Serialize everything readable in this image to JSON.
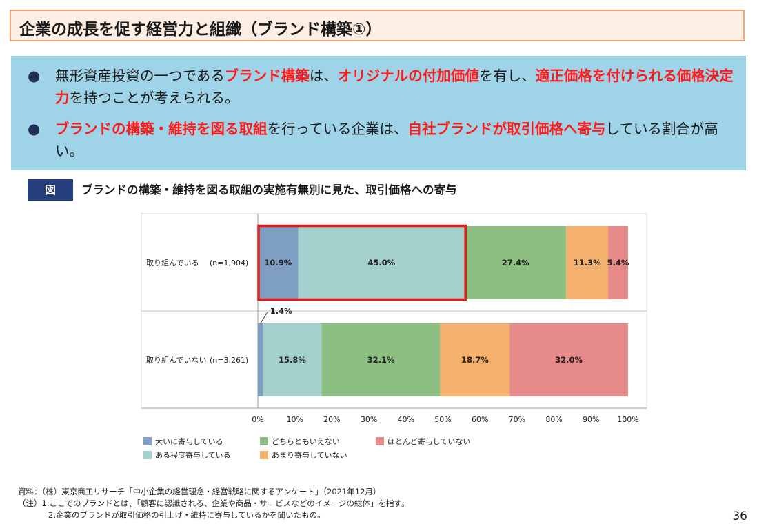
{
  "title": "企業の成長を促す経営力と組織（ブランド構築①）",
  "bullets": [
    {
      "segments": [
        {
          "text": "無形資産投資の一つである",
          "hl": false
        },
        {
          "text": "ブランド構築",
          "hl": true
        },
        {
          "text": "は、",
          "hl": false
        },
        {
          "text": "オリジナルの付加価値",
          "hl": true
        },
        {
          "text": "を有し、",
          "hl": false
        },
        {
          "text": "適正価格を付けられる価格決定力",
          "hl": true
        },
        {
          "text": "を持つことが考えられる。",
          "hl": false
        }
      ]
    },
    {
      "segments": [
        {
          "text": "ブランドの構築・維持を図る取組",
          "hl": true
        },
        {
          "text": "を行っている企業は、",
          "hl": false
        },
        {
          "text": "自社ブランドが取引価格へ寄与",
          "hl": true
        },
        {
          "text": "している割合が高い。",
          "hl": false
        }
      ]
    }
  ],
  "figure_label": "図",
  "figure_title": "ブランドの構築・維持を図る取組の実施有無別に見た、取引価格への寄与",
  "colors": {
    "highlight": "#ff1a1a",
    "title_bg": "#fdeee4",
    "title_border": "#f2a779",
    "info_bg": "#9ed3e8",
    "figure_label_bg": "#243f7c",
    "highlight_frame": "#e01b1b"
  },
  "chart_data": {
    "type": "bar",
    "orientation": "horizontal",
    "stacked": true,
    "categories": [
      "取り組んでいる",
      "取り組んでいない"
    ],
    "sample_sizes": [
      "(n=1,904)",
      "(n=3,261)"
    ],
    "series": [
      {
        "name": "大いに寄与している",
        "color": "#7f9fc3",
        "values": [
          10.9,
          1.4
        ],
        "labels": [
          "10.9%",
          "1.4%"
        ]
      },
      {
        "name": "ある程度寄与している",
        "color": "#a3cfcc",
        "values": [
          45.0,
          15.8
        ],
        "labels": [
          "45.0%",
          "15.8%"
        ]
      },
      {
        "name": "どちらともいえない",
        "color": "#8dbe82",
        "values": [
          27.4,
          32.1
        ],
        "labels": [
          "27.4%",
          "32.1%"
        ]
      },
      {
        "name": "あまり寄与していない",
        "color": "#f4b26e",
        "values": [
          11.3,
          18.7
        ],
        "labels": [
          "11.3%",
          "18.7%"
        ]
      },
      {
        "name": "ほとんど寄与していない",
        "color": "#e68a8a",
        "values": [
          5.4,
          32.0
        ],
        "labels": [
          "5.4%",
          "32.0%"
        ]
      }
    ],
    "xlim": [
      0,
      100
    ],
    "xticks": [
      "0%",
      "10%",
      "20%",
      "30%",
      "40%",
      "50%",
      "60%",
      "70%",
      "80%",
      "90%",
      "100%"
    ],
    "legend_position": "bottom"
  },
  "footnotes": [
    "資料：（株）東京商工リサーチ「中小企業の経営理念・経営戦略に関するアンケート」（2021年12月）",
    "（注）1.ここでのブランドとは、「顧客に認識される、企業や商品・サービスなどのイメージの総体」を指す。",
    "2.企業のブランドが取引価格の引上げ・維持に寄与しているかを聞いたもの。"
  ],
  "page_number": "36"
}
